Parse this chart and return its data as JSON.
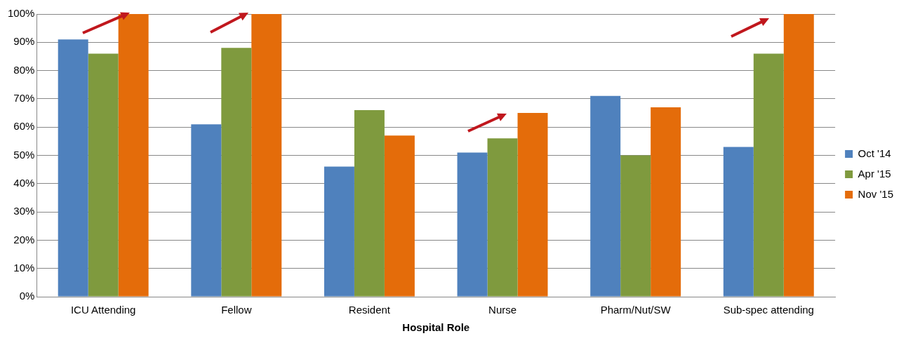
{
  "chart_data": {
    "type": "bar",
    "xlabel": "Hospital Role",
    "categories": [
      "ICU Attending",
      "Fellow",
      "Resident",
      "Nurse",
      "Pharm/Nut/SW",
      "Sub-spec attending"
    ],
    "series": [
      {
        "name": "Oct '14",
        "color": "#4f81bd",
        "values": [
          91,
          61,
          46,
          51,
          71,
          53
        ]
      },
      {
        "name": "Apr '15",
        "color": "#7f9a3e",
        "values": [
          86,
          88,
          66,
          56,
          50,
          86
        ]
      },
      {
        "name": "Nov '15",
        "color": "#e46c0a",
        "values": [
          100,
          100,
          57,
          65,
          67,
          100
        ]
      }
    ],
    "ylim": [
      0,
      100
    ],
    "yticks": [
      {
        "value": 0,
        "label": "0%"
      },
      {
        "value": 10,
        "label": "10%"
      },
      {
        "value": 20,
        "label": "20%"
      },
      {
        "value": 30,
        "label": "30%"
      },
      {
        "value": 40,
        "label": "40%"
      },
      {
        "value": 50,
        "label": "50%"
      },
      {
        "value": 60,
        "label": "60%"
      },
      {
        "value": 70,
        "label": "70%"
      },
      {
        "value": 80,
        "label": "80%"
      },
      {
        "value": 90,
        "label": "90%"
      },
      {
        "value": 100,
        "label": "100%"
      }
    ],
    "grid": "y",
    "legend": "right"
  }
}
